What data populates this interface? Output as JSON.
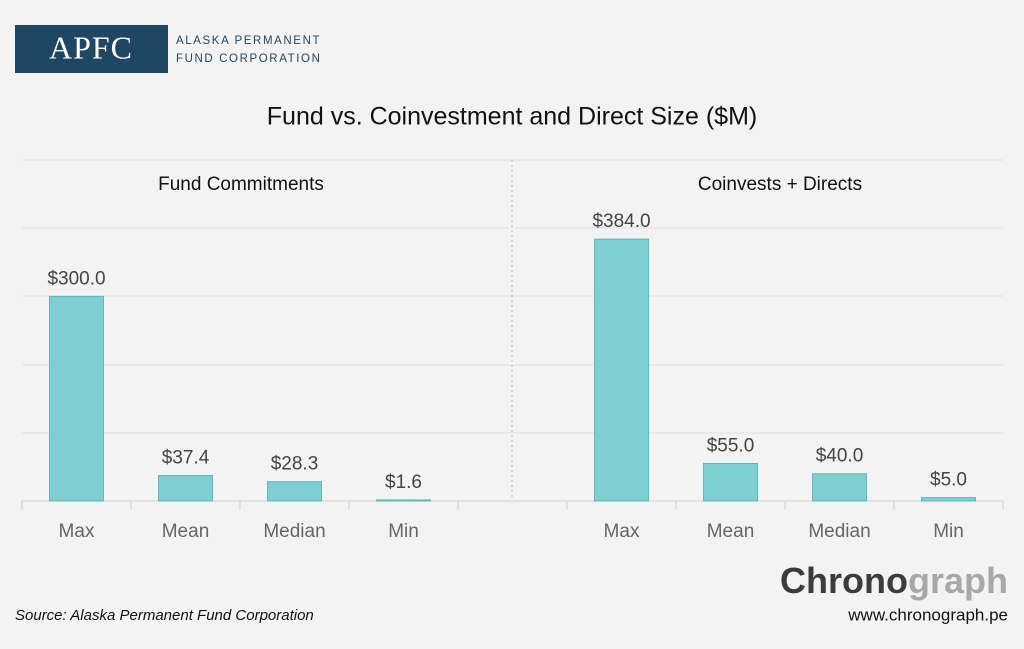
{
  "header": {
    "logo": "APFC",
    "org_line1": "ALASKA PERMANENT",
    "org_line2": "FUND CORPORATION"
  },
  "title": "Fund vs. Coinvestment and Direct Size ($M)",
  "chart_data": [
    {
      "type": "bar",
      "title": "Fund Commitments",
      "categories": [
        "Max",
        "Mean",
        "Median",
        "Min"
      ],
      "values": [
        300.0,
        37.4,
        28.3,
        1.6
      ],
      "value_labels": [
        "$300.0",
        "$37.4",
        "$28.3",
        "$1.6"
      ],
      "color": "#80cfd0",
      "ylim": [
        0,
        500
      ]
    },
    {
      "type": "bar",
      "title": "Coinvests + Directs",
      "categories": [
        "Max",
        "Mean",
        "Median",
        "Min"
      ],
      "values": [
        384.0,
        55.0,
        40.0,
        5.0
      ],
      "value_labels": [
        "$384.0",
        "$55.0",
        "$40.0",
        "$5.0"
      ],
      "color": "#80cfd0",
      "ylim": [
        0,
        500
      ]
    }
  ],
  "source": "Source: Alaska Permanent Fund Corporation",
  "brand": {
    "part1": "Chrono",
    "part2": "graph",
    "url": "www.chronograph.pe"
  }
}
